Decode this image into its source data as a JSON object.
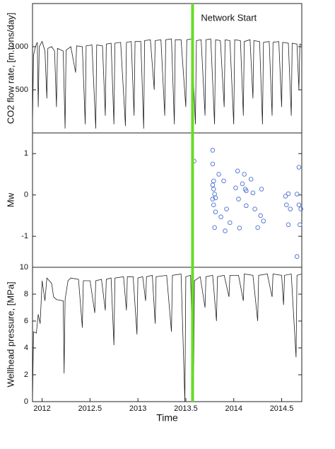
{
  "chart_data": [
    {
      "type": "line",
      "ylabel": "CO2 flow rate, [m.tons/day]",
      "xlim": [
        2011.9,
        2014.71
      ],
      "ylim": [
        0,
        1500
      ],
      "yticks": [
        500,
        1000
      ],
      "vline": {
        "x": 2013.57,
        "label": "Network Start",
        "color": "#66dd22"
      },
      "series": [
        {
          "color": "#222222",
          "x": [
            2011.9,
            2011.91,
            2011.93,
            2011.95,
            2011.96,
            2011.97,
            2012.0,
            2012.03,
            2012.05,
            2012.06,
            2012.1,
            2012.13,
            2012.15,
            2012.16,
            2012.22,
            2012.24,
            2012.25,
            2012.3,
            2012.35,
            2012.36,
            2012.42,
            2012.45,
            2012.46,
            2012.52,
            2012.56,
            2012.57,
            2012.63,
            2012.66,
            2012.67,
            2012.72,
            2012.75,
            2012.76,
            2012.82,
            2012.87,
            2012.88,
            2012.93,
            2012.96,
            2012.97,
            2013.03,
            2013.06,
            2013.07,
            2013.13,
            2013.17,
            2013.18,
            2013.24,
            2013.28,
            2013.29,
            2013.35,
            2013.38,
            2013.39,
            2013.45,
            2013.5,
            2013.51,
            2013.56,
            2013.6,
            2013.61,
            2013.66,
            2013.7,
            2013.71,
            2013.76,
            2013.8,
            2013.81,
            2013.86,
            2013.9,
            2013.91,
            2013.96,
            2014.0,
            2014.01,
            2014.07,
            2014.1,
            2014.11,
            2014.17,
            2014.2,
            2014.21,
            2014.27,
            2014.3,
            2014.31,
            2014.37,
            2014.4,
            2014.41,
            2014.47,
            2014.5,
            2014.51,
            2014.57,
            2014.6,
            2014.61,
            2014.66,
            2014.68,
            2014.69,
            2014.71
          ],
          "values": [
            100,
            900,
            1000,
            1050,
            300,
            1000,
            1060,
            950,
            400,
            980,
            1000,
            950,
            300,
            980,
            950,
            50,
            960,
            1000,
            700,
            1010,
            1000,
            100,
            1010,
            1020,
            50,
            1020,
            1010,
            200,
            1030,
            1040,
            100,
            1040,
            1050,
            80,
            1050,
            1060,
            200,
            1060,
            1060,
            50,
            1070,
            1080,
            500,
            1070,
            1080,
            200,
            1080,
            1090,
            100,
            1080,
            1080,
            300,
            1080,
            1090,
            100,
            1070,
            1080,
            200,
            1080,
            1090,
            100,
            1080,
            1070,
            300,
            1080,
            1070,
            100,
            1080,
            1070,
            200,
            1060,
            1080,
            400,
            1070,
            1060,
            100,
            1050,
            1060,
            200,
            1050,
            1060,
            300,
            1050,
            1040,
            200,
            1040,
            1030,
            500,
            1030,
            1020
          ]
        }
      ]
    },
    {
      "type": "scatter",
      "ylabel": "Mw",
      "xlim": [
        2011.9,
        2014.71
      ],
      "ylim": [
        -1.75,
        1.5
      ],
      "yticks": [
        -1,
        0,
        1
      ],
      "series": [
        {
          "color": "#4a6fd1",
          "x": [
            2013.586,
            2013.78,
            2013.78,
            2013.79,
            2013.78,
            2013.79,
            2013.8,
            2013.78,
            2013.79,
            2013.81,
            2013.8,
            2013.81,
            2013.844,
            2013.866,
            2013.895,
            2013.91,
            2013.925,
            2013.96,
            2014.02,
            2014.04,
            2014.05,
            2014.06,
            2014.09,
            2014.11,
            2014.12,
            2014.13,
            2014.13,
            2014.18,
            2014.2,
            2014.22,
            2014.25,
            2014.28,
            2014.29,
            2014.31,
            2014.54,
            2014.55,
            2014.57,
            2014.57,
            2014.59,
            2014.66,
            2014.66,
            2014.68,
            2014.68,
            2014.7,
            2014.69
          ],
          "values": [
            0.82,
            1.08,
            0.75,
            0.34,
            0.24,
            0.14,
            0.02,
            -0.1,
            -0.24,
            -0.07,
            -0.79,
            -0.41,
            0.5,
            -0.53,
            0.34,
            -0.87,
            -0.34,
            -0.67,
            0.17,
            0.58,
            -0.1,
            -0.8,
            0.27,
            0.5,
            0.14,
            -0.26,
            0.1,
            0.38,
            0.05,
            -0.34,
            -0.79,
            -0.5,
            0.14,
            -0.63,
            -0.03,
            -0.24,
            0.03,
            -0.72,
            -0.34,
            0.02,
            -1.49,
            0.67,
            -0.24,
            -0.34,
            -0.72
          ]
        }
      ]
    },
    {
      "type": "line",
      "ylabel": "Wellhead pressure, [MPa]",
      "xlabel": "Time",
      "xlim": [
        2011.9,
        2014.71
      ],
      "ylim": [
        0,
        10
      ],
      "yticks": [
        0,
        2,
        4,
        6,
        8,
        10
      ],
      "xticks": [
        2012,
        2012.5,
        2013,
        2013.5,
        2014,
        2014.5
      ],
      "series": [
        {
          "color": "#222222",
          "x": [
            2011.9,
            2011.91,
            2011.94,
            2011.96,
            2011.98,
            2012.0,
            2012.03,
            2012.05,
            2012.1,
            2012.12,
            2012.15,
            2012.22,
            2012.23,
            2012.24,
            2012.27,
            2012.3,
            2012.38,
            2012.42,
            2012.43,
            2012.5,
            2012.55,
            2012.56,
            2012.62,
            2012.66,
            2012.67,
            2012.72,
            2012.75,
            2012.76,
            2012.85,
            2012.88,
            2012.89,
            2012.95,
            2012.99,
            2013.0,
            2013.05,
            2013.08,
            2013.09,
            2013.15,
            2013.18,
            2013.19,
            2013.3,
            2013.35,
            2013.36,
            2013.45,
            2013.49,
            2013.5,
            2013.55,
            2013.58,
            2013.59,
            2013.65,
            2013.7,
            2013.71,
            2013.78,
            2013.82,
            2013.83,
            2013.9,
            2013.95,
            2013.96,
            2014.05,
            2014.1,
            2014.11,
            2014.2,
            2014.25,
            2014.26,
            2014.35,
            2014.4,
            2014.41,
            2014.5,
            2014.52,
            2014.53,
            2014.6,
            2014.65,
            2014.66,
            2014.71
          ],
          "values": [
            0,
            5.2,
            5.1,
            6.5,
            5.8,
            9.0,
            7.5,
            9.2,
            8.8,
            7.8,
            7.6,
            7.5,
            2.1,
            7.6,
            9.0,
            9.2,
            9.1,
            5.5,
            9.0,
            9.0,
            6.6,
            9.0,
            9.1,
            6.8,
            9.1,
            9.2,
            4.2,
            9.2,
            9.3,
            6.8,
            9.3,
            9.3,
            5.0,
            9.2,
            9.3,
            7.5,
            9.3,
            9.4,
            5.8,
            9.3,
            9.4,
            5.2,
            9.4,
            9.5,
            0,
            9.3,
            9.4,
            0,
            9.0,
            9.3,
            7.0,
            9.3,
            9.4,
            6.0,
            9.3,
            9.4,
            7.8,
            9.4,
            9.4,
            7.5,
            9.5,
            9.4,
            6.0,
            9.4,
            9.5,
            7.8,
            9.5,
            9.4,
            7.2,
            9.4,
            9.5,
            3.3,
            9.4,
            9.5
          ]
        }
      ]
    }
  ]
}
